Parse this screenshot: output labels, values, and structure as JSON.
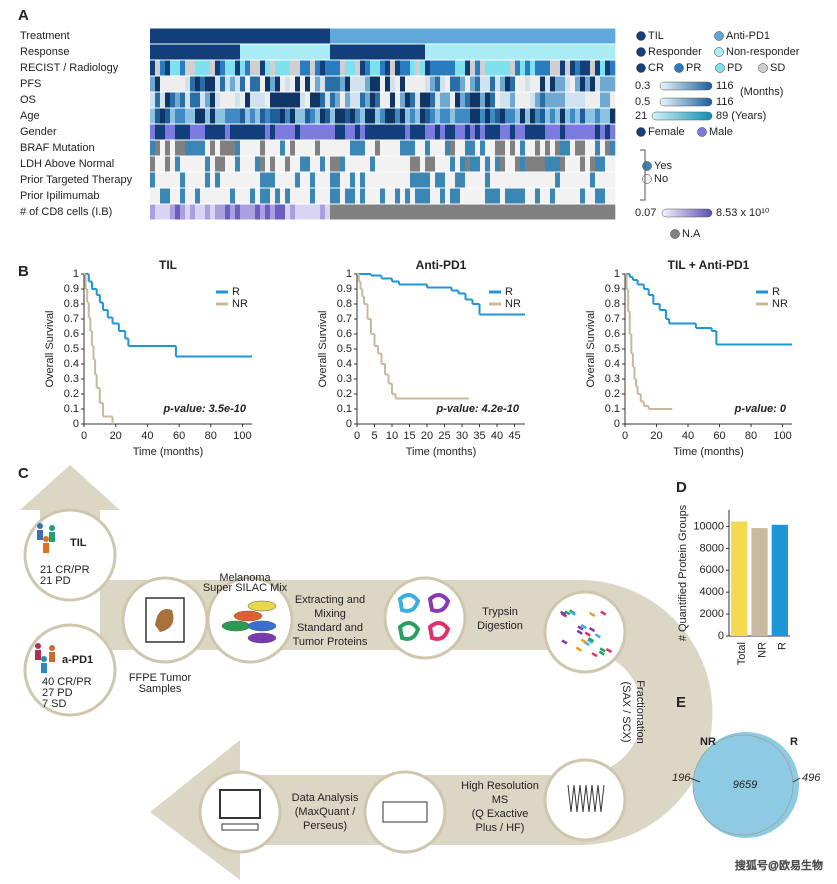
{
  "panel_labels": [
    "A",
    "B",
    "C",
    "D",
    "E"
  ],
  "panel_a": {
    "rows": [
      "Treatment",
      "Response",
      "RECIST / Radiology",
      "PFS",
      "OS",
      "Age",
      "Gender",
      "BRAF Mutation",
      "LDH Above Normal",
      "Prior Targeted Therapy",
      "Prior Ipilimumab",
      "# of CD8 cells (I.B)"
    ],
    "legend": [
      {
        "label": "TIL",
        "color": "#123f7a"
      },
      {
        "label": "Anti-PD1",
        "color": "#5fa8dc"
      },
      {
        "label": "Responder",
        "color": "#123f7a"
      },
      {
        "label": "Non-responder",
        "color": "#a9ecf5"
      },
      {
        "label": "CR",
        "color": "#123f7a"
      },
      {
        "label": "PR",
        "color": "#2a7cc0"
      },
      {
        "label": "PD",
        "color": "#7fe0ee"
      },
      {
        "label": "SD",
        "color": "#cfcfcf"
      },
      {
        "label": "Female",
        "color": "#123f7a"
      },
      {
        "label": "Male",
        "color": "#7b7be0"
      },
      {
        "label": "Yes",
        "color": "#3c86b5"
      },
      {
        "label": "No",
        "color": "#f2f2f2"
      },
      {
        "label": "N.A",
        "color": "#808080"
      }
    ],
    "ranges": [
      {
        "min": "0.3",
        "max": "116",
        "unit": "(Months)"
      },
      {
        "min": "0.5",
        "max": "116"
      },
      {
        "min": "21",
        "max": "89 (Years)"
      },
      {
        "min": "0.07",
        "max": "8.53 x 10¹⁰"
      }
    ]
  },
  "chart_data": [
    {
      "type": "line",
      "step": true,
      "title": "TIL",
      "xlabel": "Time (months)",
      "ylabel": "Overall Survival",
      "annotation": "p-value: 3.5e-10",
      "legend": "upper right",
      "xlim": [
        0,
        106
      ],
      "ylim": [
        0,
        1
      ],
      "xticks": [
        0,
        20,
        40,
        60,
        80,
        100
      ],
      "yticks": [
        0,
        0.1,
        0.2,
        0.3,
        0.4,
        0.5,
        0.6,
        0.7,
        0.8,
        0.9,
        1
      ],
      "series": [
        {
          "name": "R",
          "color": "#1e96d6",
          "x": [
            0,
            3,
            5,
            8,
            10,
            12,
            15,
            18,
            22,
            26,
            28,
            58,
            106
          ],
          "values": [
            1,
            0.95,
            0.9,
            0.86,
            0.81,
            0.76,
            0.71,
            0.67,
            0.62,
            0.57,
            0.52,
            0.45,
            0.45
          ]
        },
        {
          "name": "NR",
          "color": "#c8b99a",
          "x": [
            0,
            1,
            2,
            3,
            4,
            5,
            6,
            7,
            8,
            10,
            12,
            18
          ],
          "values": [
            1,
            0.9,
            0.81,
            0.71,
            0.62,
            0.52,
            0.43,
            0.33,
            0.24,
            0.14,
            0.05,
            0
          ]
        }
      ]
    },
    {
      "type": "line",
      "step": true,
      "title": "Anti-PD1",
      "xlabel": "Time (months)",
      "ylabel": "Overall Survival",
      "annotation": "p-value: 4.2e-10",
      "legend": "upper right",
      "xlim": [
        0,
        48
      ],
      "ylim": [
        0,
        1
      ],
      "xticks": [
        0,
        5,
        10,
        15,
        20,
        25,
        30,
        35,
        40,
        45
      ],
      "yticks": [
        0,
        0.1,
        0.2,
        0.3,
        0.4,
        0.5,
        0.6,
        0.7,
        0.8,
        0.9,
        1
      ],
      "series": [
        {
          "name": "R",
          "color": "#1e96d6",
          "x": [
            0,
            4,
            7,
            10,
            12,
            20,
            27,
            29,
            31,
            33,
            35,
            48
          ],
          "values": [
            1,
            0.99,
            0.97,
            0.95,
            0.93,
            0.91,
            0.89,
            0.87,
            0.83,
            0.8,
            0.73,
            0.73
          ]
        },
        {
          "name": "NR",
          "color": "#c8b99a",
          "x": [
            0,
            0.5,
            1,
            1.5,
            2,
            3,
            4,
            5,
            6,
            7,
            8,
            9,
            10,
            11,
            32
          ],
          "values": [
            1,
            0.95,
            0.9,
            0.85,
            0.8,
            0.7,
            0.6,
            0.52,
            0.47,
            0.4,
            0.33,
            0.27,
            0.2,
            0.17,
            0.17
          ]
        }
      ]
    },
    {
      "type": "line",
      "step": true,
      "title": "TIL + Anti-PD1",
      "xlabel": "Time (months)",
      "ylabel": "Overall Survival",
      "annotation": "p-value: 0",
      "legend": "upper right",
      "xlim": [
        0,
        106
      ],
      "ylim": [
        0,
        1
      ],
      "xticks": [
        0,
        20,
        40,
        60,
        80,
        100
      ],
      "yticks": [
        0,
        0.1,
        0.2,
        0.3,
        0.4,
        0.5,
        0.6,
        0.7,
        0.8,
        0.9,
        1
      ],
      "series": [
        {
          "name": "R",
          "color": "#1e96d6",
          "x": [
            0,
            3,
            5,
            8,
            12,
            15,
            18,
            22,
            26,
            28,
            45,
            55,
            58,
            106
          ],
          "values": [
            1,
            0.98,
            0.96,
            0.93,
            0.9,
            0.86,
            0.8,
            0.76,
            0.7,
            0.67,
            0.64,
            0.62,
            0.53,
            0.53
          ]
        },
        {
          "name": "NR",
          "color": "#c8b99a",
          "x": [
            0,
            1,
            2,
            3,
            4,
            5,
            6,
            7,
            8,
            10,
            12,
            15,
            30
          ],
          "values": [
            1,
            0.9,
            0.75,
            0.6,
            0.47,
            0.38,
            0.3,
            0.25,
            0.2,
            0.15,
            0.12,
            0.1,
            0.1
          ]
        }
      ]
    },
    {
      "type": "bar",
      "ylabel": "# Quantified Protein Groups",
      "categories": [
        "Total",
        "NR",
        "R"
      ],
      "values": [
        10450,
        9850,
        10150
      ],
      "colors": [
        "#f5d94e",
        "#c9b9a0",
        "#1e96d6"
      ],
      "ylim": [
        0,
        11500
      ],
      "yticks": [
        0,
        2000,
        4000,
        6000,
        8000,
        10000
      ]
    }
  ],
  "panel_c": {
    "til": {
      "title": "TIL",
      "lines": [
        "21 CR/PR",
        "21 PD"
      ]
    },
    "apd1": {
      "title": "a-PD1",
      "lines": [
        "40 CR/PR",
        "27 PD",
        "7  SD"
      ]
    },
    "steps": [
      {
        "lines": [
          "Melanoma",
          "Super SILAC Mix"
        ]
      },
      {
        "lines": [
          "FFPE Tumor",
          "Samples"
        ]
      },
      {
        "lines": [
          "Extracting and",
          "Mixing",
          "Standard and",
          "Tumor Proteins"
        ]
      },
      {
        "lines": [
          "Trypsin",
          "Digestion"
        ]
      },
      {
        "lines": [
          "Fractionation",
          "(SAX / SCX)"
        ]
      },
      {
        "lines": [
          "High Resolution",
          "MS",
          "(Q Exactive",
          "Plus / HF)"
        ]
      },
      {
        "lines": [
          "Data Analysis",
          "(MaxQuant /",
          "Perseus)"
        ]
      }
    ]
  },
  "panel_e": {
    "left_name": "NR",
    "right_name": "R",
    "left_only": "196",
    "overlap": "9659",
    "right_only": "496"
  },
  "watermark": "搜狐号@欧易生物"
}
